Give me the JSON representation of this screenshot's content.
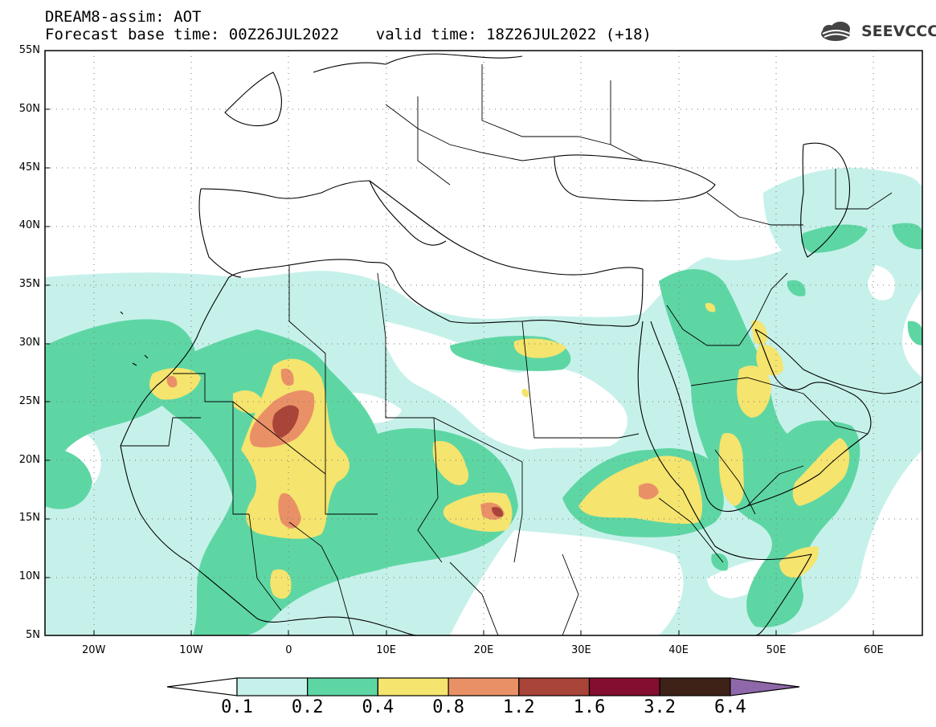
{
  "title": {
    "line1": "DREAM8-assim: AOT",
    "line2": "Forecast base time: 00Z26JUL2022    valid time: 18Z26JUL2022 (+18)"
  },
  "logo": {
    "text": "SEEVCCC",
    "icon": "cloud-logo-icon"
  },
  "map": {
    "lon_range": [
      -25,
      65
    ],
    "lat_range": [
      5,
      55
    ],
    "lat_labels": [
      "55N",
      "50N",
      "45N",
      "40N",
      "35N",
      "30N",
      "25N",
      "20N",
      "15N",
      "10N",
      "5N"
    ],
    "lat_values": [
      55,
      50,
      45,
      40,
      35,
      30,
      25,
      20,
      15,
      10,
      5
    ],
    "lon_labels": [
      "20W",
      "10W",
      "0",
      "10E",
      "20E",
      "30E",
      "40E",
      "50E",
      "60E"
    ],
    "lon_values": [
      -20,
      -10,
      0,
      10,
      20,
      30,
      40,
      50,
      60
    ]
  },
  "colorbar": {
    "levels": [
      "0.1",
      "0.2",
      "0.4",
      "0.8",
      "1.2",
      "1.6",
      "3.2",
      "6.4"
    ],
    "colors": [
      "#ffffff",
      "#c6f1ea",
      "#5ed6a4",
      "#f5e46e",
      "#ea9067",
      "#a84438",
      "#840e2f",
      "#3e2218",
      "#8e68a8"
    ]
  }
}
